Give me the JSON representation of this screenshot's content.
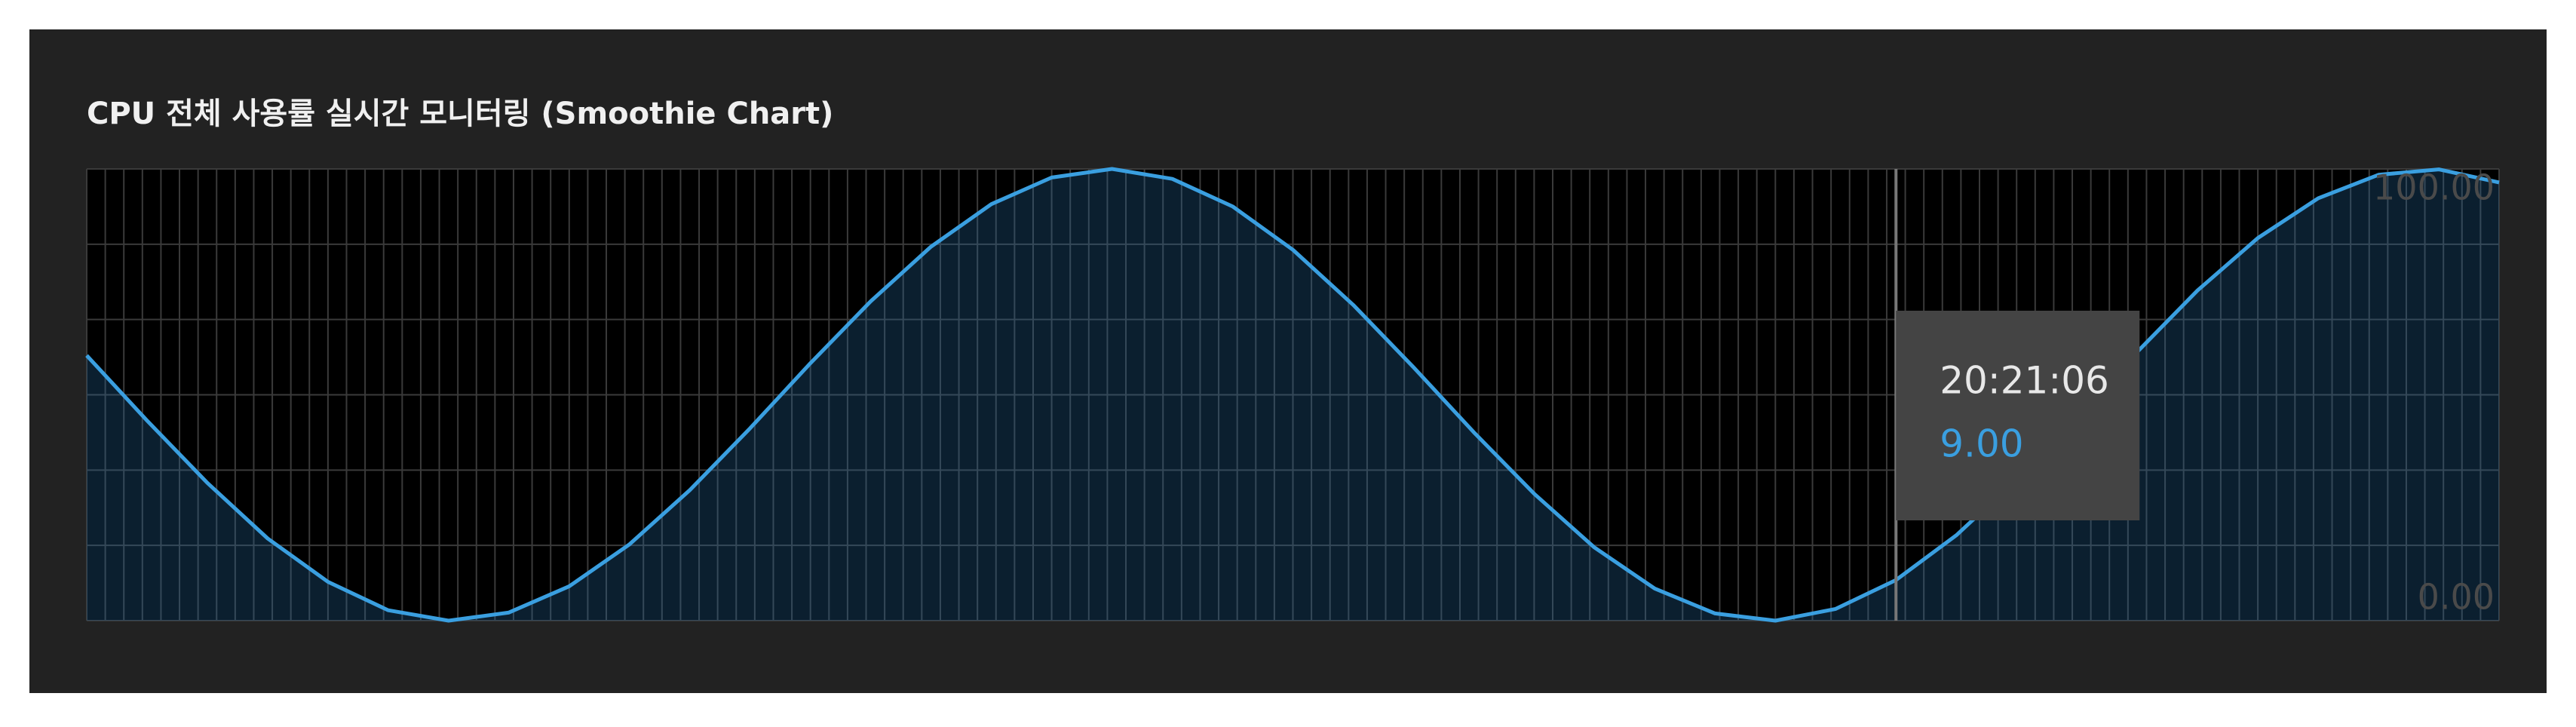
{
  "chart_data": {
    "type": "line",
    "title": "CPU 전체 사용률 실시간 모니터링 (Smoothie Chart)",
    "series": [
      {
        "color": "#3a9fe0",
        "fill": "rgba(40,110,170,0.28)",
        "values": [
          58.7,
          44.3,
          30.5,
          18.2,
          8.6,
          2.3,
          0.0,
          1.8,
          7.6,
          16.9,
          28.9,
          42.6,
          57.0,
          70.7,
          82.8,
          92.2,
          98.1,
          100.0,
          97.8,
          91.7,
          82.1,
          69.9,
          56.1,
          41.7,
          28.1,
          16.2,
          7.1,
          1.6,
          0.0,
          2.6,
          9.0,
          18.9,
          31.3,
          45.2,
          59.5,
          73.1,
          84.7,
          93.5,
          98.7,
          99.9,
          97.0
        ]
      }
    ],
    "ylim": [
      0,
      100
    ],
    "yticks": [
      {
        "value": 0,
        "label": "0.00"
      },
      {
        "value": 100,
        "label": "100.00"
      }
    ],
    "grid": {
      "rows": 6,
      "columns": 130,
      "color": "#3a3a3a"
    },
    "tooltip": {
      "index": 30,
      "time": "20:21:06",
      "value_label": "9.00"
    }
  }
}
